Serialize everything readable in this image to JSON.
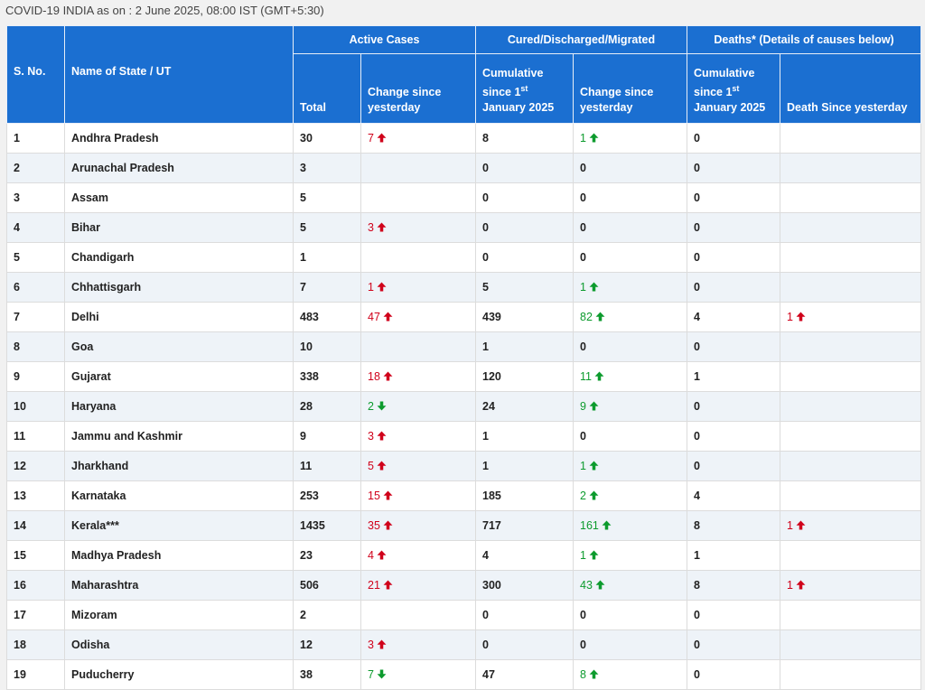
{
  "caption": "COVID-19 INDIA as on : 2 June 2025, 08:00 IST (GMT+5:30)",
  "headers": {
    "sno": "S. No.",
    "state": "Name of State / UT",
    "active": "Active Cases",
    "cured": "Cured/Discharged/Migrated",
    "deaths": "Deaths* (Details of causes below)",
    "total": "Total",
    "change_since_yesterday": "Change since yesterday",
    "cumulative_prefix": "Cumulative since 1",
    "cumulative_sup": "st",
    "cumulative_suffix": "January 2025",
    "death_since_yesterday": "Death Since yesterday"
  },
  "colors": {
    "header_bg": "#1b6fd1",
    "up_red": "#d0021b",
    "green": "#0d9b2e"
  },
  "rows": [
    {
      "sno": "1",
      "state": "Andhra Pradesh",
      "active": "30",
      "active_change": "7",
      "active_dir": "up",
      "cured": "8",
      "cured_change": "1",
      "cured_dir": "up",
      "deaths": "0",
      "death_change": "",
      "death_dir": ""
    },
    {
      "sno": "2",
      "state": "Arunachal Pradesh",
      "active": "3",
      "active_change": "",
      "active_dir": "",
      "cured": "0",
      "cured_change": "0",
      "cured_dir": "",
      "deaths": "0",
      "death_change": "",
      "death_dir": ""
    },
    {
      "sno": "3",
      "state": "Assam",
      "active": "5",
      "active_change": "",
      "active_dir": "",
      "cured": "0",
      "cured_change": "0",
      "cured_dir": "",
      "deaths": "0",
      "death_change": "",
      "death_dir": ""
    },
    {
      "sno": "4",
      "state": "Bihar",
      "active": "5",
      "active_change": "3",
      "active_dir": "up",
      "cured": "0",
      "cured_change": "0",
      "cured_dir": "",
      "deaths": "0",
      "death_change": "",
      "death_dir": ""
    },
    {
      "sno": "5",
      "state": "Chandigarh",
      "active": "1",
      "active_change": "",
      "active_dir": "",
      "cured": "0",
      "cured_change": "0",
      "cured_dir": "",
      "deaths": "0",
      "death_change": "",
      "death_dir": ""
    },
    {
      "sno": "6",
      "state": "Chhattisgarh",
      "active": "7",
      "active_change": "1",
      "active_dir": "up",
      "cured": "5",
      "cured_change": "1",
      "cured_dir": "up",
      "deaths": "0",
      "death_change": "",
      "death_dir": ""
    },
    {
      "sno": "7",
      "state": "Delhi",
      "active": "483",
      "active_change": "47",
      "active_dir": "up",
      "cured": "439",
      "cured_change": "82",
      "cured_dir": "up",
      "deaths": "4",
      "death_change": "1",
      "death_dir": "up"
    },
    {
      "sno": "8",
      "state": "Goa",
      "active": "10",
      "active_change": "",
      "active_dir": "",
      "cured": "1",
      "cured_change": "0",
      "cured_dir": "",
      "deaths": "0",
      "death_change": "",
      "death_dir": ""
    },
    {
      "sno": "9",
      "state": "Gujarat",
      "active": "338",
      "active_change": "18",
      "active_dir": "up",
      "cured": "120",
      "cured_change": "11",
      "cured_dir": "up",
      "deaths": "1",
      "death_change": "",
      "death_dir": ""
    },
    {
      "sno": "10",
      "state": "Haryana",
      "active": "28",
      "active_change": "2",
      "active_dir": "down",
      "cured": "24",
      "cured_change": "9",
      "cured_dir": "up",
      "deaths": "0",
      "death_change": "",
      "death_dir": ""
    },
    {
      "sno": "11",
      "state": "Jammu and Kashmir",
      "active": "9",
      "active_change": "3",
      "active_dir": "up",
      "cured": "1",
      "cured_change": "0",
      "cured_dir": "",
      "deaths": "0",
      "death_change": "",
      "death_dir": ""
    },
    {
      "sno": "12",
      "state": "Jharkhand",
      "active": "11",
      "active_change": "5",
      "active_dir": "up",
      "cured": "1",
      "cured_change": "1",
      "cured_dir": "up",
      "deaths": "0",
      "death_change": "",
      "death_dir": ""
    },
    {
      "sno": "13",
      "state": "Karnataka",
      "active": "253",
      "active_change": "15",
      "active_dir": "up",
      "cured": "185",
      "cured_change": "2",
      "cured_dir": "up",
      "deaths": "4",
      "death_change": "",
      "death_dir": ""
    },
    {
      "sno": "14",
      "state": "Kerala***",
      "active": "1435",
      "active_change": "35",
      "active_dir": "up",
      "cured": "717",
      "cured_change": "161",
      "cured_dir": "up",
      "deaths": "8",
      "death_change": "1",
      "death_dir": "up"
    },
    {
      "sno": "15",
      "state": "Madhya Pradesh",
      "active": "23",
      "active_change": "4",
      "active_dir": "up",
      "cured": "4",
      "cured_change": "1",
      "cured_dir": "up",
      "deaths": "1",
      "death_change": "",
      "death_dir": ""
    },
    {
      "sno": "16",
      "state": "Maharashtra",
      "active": "506",
      "active_change": "21",
      "active_dir": "up",
      "cured": "300",
      "cured_change": "43",
      "cured_dir": "up",
      "deaths": "8",
      "death_change": "1",
      "death_dir": "up"
    },
    {
      "sno": "17",
      "state": "Mizoram",
      "active": "2",
      "active_change": "",
      "active_dir": "",
      "cured": "0",
      "cured_change": "0",
      "cured_dir": "",
      "deaths": "0",
      "death_change": "",
      "death_dir": ""
    },
    {
      "sno": "18",
      "state": "Odisha",
      "active": "12",
      "active_change": "3",
      "active_dir": "up",
      "cured": "0",
      "cured_change": "0",
      "cured_dir": "",
      "deaths": "0",
      "death_change": "",
      "death_dir": ""
    },
    {
      "sno": "19",
      "state": "Puducherry",
      "active": "38",
      "active_change": "7",
      "active_dir": "down",
      "cured": "47",
      "cured_change": "8",
      "cured_dir": "up",
      "deaths": "0",
      "death_change": "",
      "death_dir": ""
    }
  ]
}
